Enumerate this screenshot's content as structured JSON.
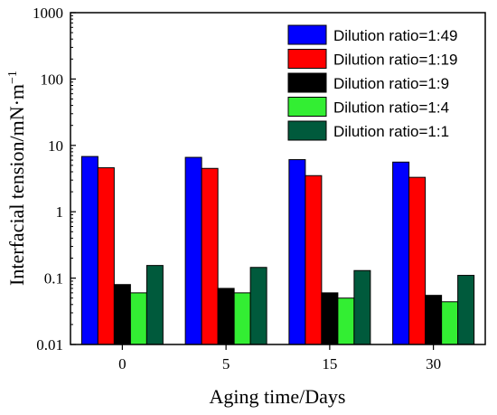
{
  "chart_data": {
    "type": "bar",
    "categories": [
      "0",
      "5",
      "15",
      "30"
    ],
    "series": [
      {
        "name": "Dilution ratio=1:49",
        "color": "#0000ff",
        "values": [
          6.8,
          6.6,
          6.1,
          5.6
        ]
      },
      {
        "name": "Dilution ratio=1:19",
        "color": "#ff0000",
        "values": [
          4.6,
          4.5,
          3.5,
          3.3
        ]
      },
      {
        "name": "Dilution ratio=1:9",
        "color": "#000000",
        "values": [
          0.08,
          0.07,
          0.06,
          0.055
        ]
      },
      {
        "name": "Dilution ratio=1:4",
        "color": "#33ee33",
        "values": [
          0.06,
          0.06,
          0.05,
          0.044
        ]
      },
      {
        "name": "Dilution ratio=1:1",
        "color": "#005a3c",
        "values": [
          0.155,
          0.145,
          0.13,
          0.11
        ]
      }
    ],
    "xlabel": "Aging time/Days",
    "ylabel": "Interfacial tension/mN·m",
    "ylabel_superscript": "−1",
    "yscale": "log",
    "ylim": [
      0.01,
      1000
    ],
    "yticks": [
      "0.01",
      "0.1",
      "1",
      "10",
      "100",
      "1000"
    ],
    "grid": false,
    "legend_position": "top-right"
  }
}
